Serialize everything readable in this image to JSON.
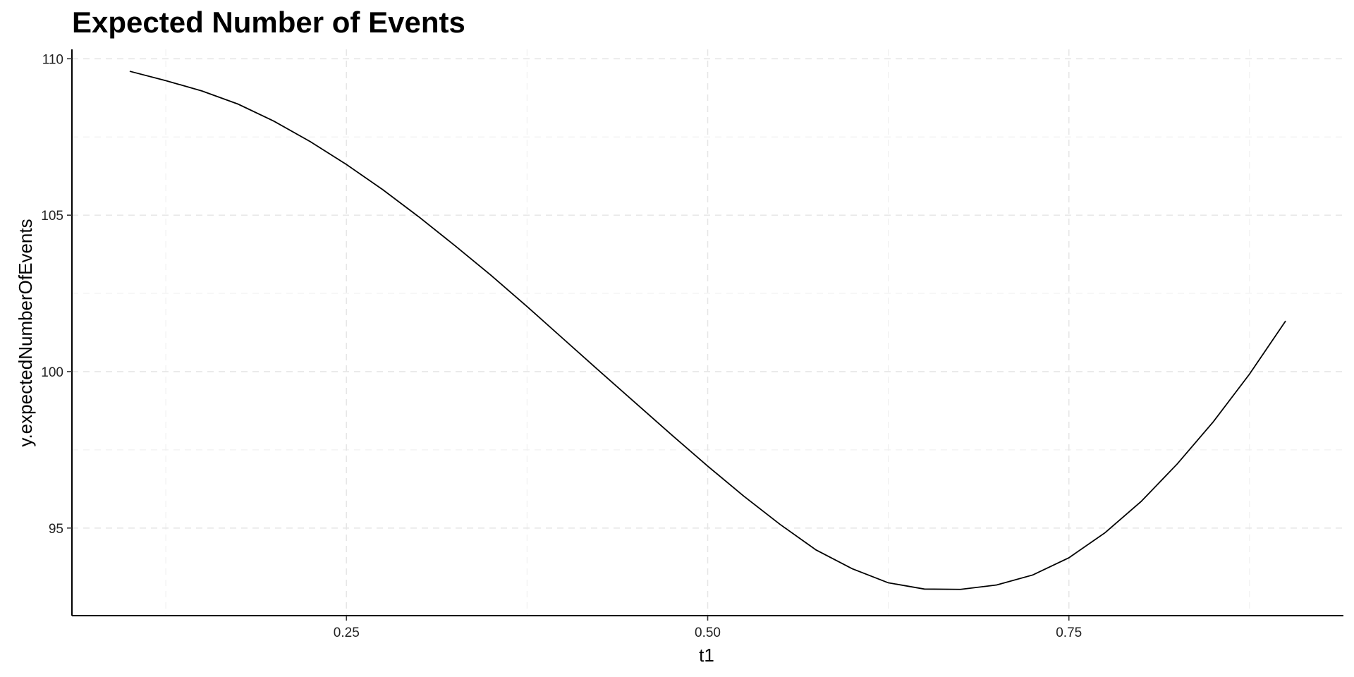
{
  "chart_data": {
    "type": "line",
    "title": "Expected Number of Events",
    "xlabel": "t1",
    "ylabel": "y.expectedNumberOfEvents",
    "xlim": [
      0.06,
      0.94
    ],
    "ylim": [
      92.2,
      110.3
    ],
    "x_ticks": [
      0.25,
      0.5,
      0.75
    ],
    "x_tick_labels": [
      "0.25",
      "0.50",
      "0.75"
    ],
    "x_minor_ticks": [
      0.125,
      0.375,
      0.625,
      0.875
    ],
    "y_ticks": [
      95,
      100,
      105,
      110
    ],
    "y_tick_labels": [
      "95",
      "100",
      "105",
      "110"
    ],
    "y_minor_ticks": [
      97.5,
      102.5,
      107.5
    ],
    "grid": true,
    "legend": "none",
    "series": [
      {
        "color": "#000000",
        "x": [
          0.1,
          0.125,
          0.15,
          0.175,
          0.2,
          0.225,
          0.25,
          0.275,
          0.3,
          0.325,
          0.35,
          0.375,
          0.4,
          0.425,
          0.45,
          0.475,
          0.5,
          0.525,
          0.55,
          0.575,
          0.6,
          0.625,
          0.65,
          0.675,
          0.7,
          0.725,
          0.75,
          0.775,
          0.8,
          0.825,
          0.85,
          0.875,
          0.9
        ],
        "values": [
          109.6,
          109.3,
          108.97,
          108.55,
          108.0,
          107.35,
          106.62,
          105.82,
          104.95,
          104.03,
          103.08,
          102.08,
          101.05,
          100.02,
          99.0,
          97.98,
          96.98,
          96.02,
          95.12,
          94.3,
          93.7,
          93.25,
          93.05,
          93.04,
          93.18,
          93.5,
          94.05,
          94.85,
          95.85,
          97.05,
          98.4,
          99.92,
          101.62
        ]
      }
    ]
  }
}
